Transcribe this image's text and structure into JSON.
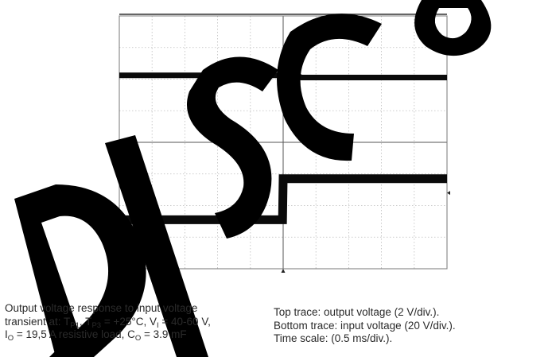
{
  "watermark": {
    "text": "DISCO",
    "color": "#000000"
  },
  "chart_data": {
    "type": "line",
    "title": "",
    "xlabel": "",
    "ylabel": "",
    "grid": true,
    "x_divisions": 10,
    "y_divisions": 8,
    "colors": {
      "trace": "#0a0a0a",
      "grid": "#bdbdbd",
      "background": "#ffffff"
    },
    "series": [
      {
        "id": "top",
        "x_div": [
          0,
          5.0,
          5.15,
          5.3,
          5.55,
          10
        ],
        "y_div": [
          6.12,
          6.12,
          6.35,
          6.2,
          6.05,
          6.05
        ]
      },
      {
        "id": "bottom",
        "x_div": [
          0,
          4.98,
          5.0,
          10
        ],
        "y_div": [
          1.55,
          1.55,
          2.85,
          2.85
        ]
      }
    ]
  },
  "caption_left": {
    "line1": "Output voltage response to input voltage",
    "line2_a": "transient at: T",
    "line2_sub1": "P1",
    "line2_b": ",  T",
    "line2_sub2": "P3",
    "line2_c": " = +25°C, V",
    "line2_sub3": "I",
    "line2_d": " = 40-60 V,",
    "line3_a": "I",
    "line3_sub1": "O",
    "line3_b": " = 19,5 A resistive load, C",
    "line3_sub2": "O",
    "line3_c": " = 3.9 mF"
  },
  "caption_right": {
    "line1": "Top trace: output voltage (2 V/div.).",
    "line2": "Bottom trace: input voltage (20 V/div.).",
    "line3": "Time scale: (0.5 ms/div.)."
  }
}
